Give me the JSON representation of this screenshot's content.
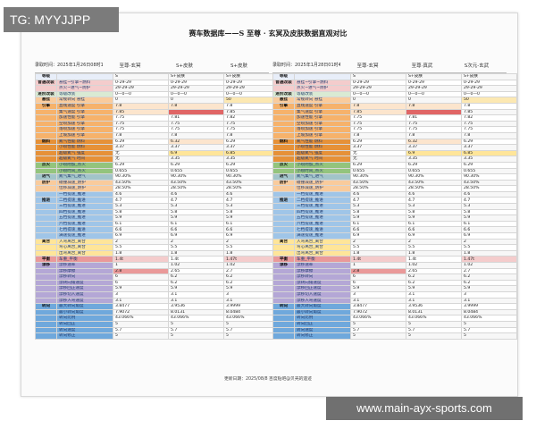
{
  "overlay": {
    "tag": "TG: MYYJJPP",
    "url": "www.main-ayx-sports.com"
  },
  "doc": {
    "title": "赛车数据库——S 至尊 · 玄冥及皮肤数据直观对比",
    "footer": "更新日期：2025/08/8 百度贴吧@贝壳的遗迹",
    "left": {
      "date": "录取时间：2025年1月26日08时15分",
      "cols": [
        "至尊-玄冥",
        "S+皮肤",
        "S+皮肤"
      ]
    },
    "right": {
      "date": "录取时间：2025年1月28日01时45分",
      "cols": [
        "至尊-玄冥",
        "至尊·真武",
        "S次元-玄武"
      ]
    }
  },
  "colors": {
    "item": "#1f3a6e",
    "red": "#e06666"
  },
  "rows": [
    {
      "cat": "等级",
      "item": "",
      "v": [
        "S",
        "S+皮肤",
        "S+皮肤"
      ],
      "bg": "#e8eef9",
      "c": [
        "",
        "",
        ""
      ]
    },
    {
      "cat": "普通改装",
      "item": "悬挂~引擎~燃料",
      "v": [
        "0-29-29",
        "0-29-29",
        "0-29-29"
      ],
      "bg": "#f4cccc",
      "c": [
        "",
        "",
        ""
      ]
    },
    {
      "cat": "",
      "item": "点火~进气~防护",
      "v": [
        "29-29-29",
        "29-29-29",
        "29-29-29"
      ],
      "bg": "#f4cccc",
      "c": [
        "",
        "",
        ""
      ]
    },
    {
      "cat": "进阶改装",
      "item": "等级改装",
      "v": [
        "0—0—0",
        "0—0—0",
        "0—0—0"
      ],
      "bg": "#d9ead3",
      "c": [
        "",
        "",
        ""
      ]
    },
    {
      "cat": "悬挂",
      "item": "常规转向 悬挂",
      "v": [
        "0",
        "0",
        "50"
      ],
      "bg": "#f9cb9c",
      "c": [
        "",
        "",
        "#fce8b2"
      ]
    },
    {
      "cat": "引擎",
      "item": "直线速度 引擎",
      "v": [
        "7.8",
        "7.8",
        "7.8"
      ],
      "bg": "#f6b26b",
      "c": [
        "#fce5cd",
        "#fce5cd",
        ""
      ]
    },
    {
      "cat": "",
      "item": "集气速度 引擎",
      "v": [
        "7.85",
        "",
        "7.85"
      ],
      "bg": "#f6b26b",
      "c": [
        "#fce5cd",
        "#e06666",
        ""
      ]
    },
    {
      "cat": "",
      "item": "加速性能 引擎",
      "v": [
        "7.75",
        "7.81",
        "7.82"
      ],
      "bg": "#f6b26b",
      "c": [
        "",
        "",
        ""
      ]
    },
    {
      "cat": "",
      "item": "空喷加速 引擎",
      "v": [
        "7.75",
        "7.75",
        "7.75"
      ],
      "bg": "#f6b26b",
      "c": [
        "",
        "",
        ""
      ]
    },
    {
      "cat": "",
      "item": "落喷加速 引擎",
      "v": [
        "7.75",
        "7.75",
        "7.75"
      ],
      "bg": "#f6b26b",
      "c": [
        "",
        "",
        ""
      ]
    },
    {
      "cat": "",
      "item": "上坡加速 引擎",
      "v": [
        "7.8",
        "7.8",
        "7.8"
      ],
      "bg": "#f6b26b",
      "c": [
        "",
        "",
        ""
      ]
    },
    {
      "cat": "燃料",
      "item": "氮气性能 燃料",
      "v": [
        "6.29",
        "6.32",
        "6.29"
      ],
      "bg": "#e69138",
      "c": [
        "",
        "#fce5cd",
        ""
      ]
    },
    {
      "cat": "",
      "item": "小喷性能 燃料",
      "v": [
        "3.37",
        "3.37",
        "3.37"
      ],
      "bg": "#e69138",
      "c": [
        "",
        "",
        ""
      ]
    },
    {
      "cat": "",
      "item": "超级氮气 强度",
      "v": [
        "无",
        "6.9",
        "6.85"
      ],
      "bg": "#e69138",
      "c": [
        "",
        "#ffe599",
        "#ffe599"
      ]
    },
    {
      "cat": "",
      "item": "超级氮气 时间",
      "v": [
        "无",
        "3.35",
        "3.35"
      ],
      "bg": "#e69138",
      "c": [
        "",
        "",
        ""
      ]
    },
    {
      "cat": "点火",
      "item": "小喷附加_点火",
      "v": [
        "6.29",
        "6.29",
        "6.29"
      ],
      "bg": "#93c47d",
      "c": [
        "",
        "",
        ""
      ]
    },
    {
      "cat": "",
      "item": "小喷时间_点火",
      "v": [
        "0.655",
        "0.655",
        "0.655"
      ],
      "bg": "#93c47d",
      "c": [
        "",
        "",
        ""
      ]
    },
    {
      "cat": "进气",
      "item": "氮气集气_进气",
      "v": [
        "90.30%",
        "90.30%",
        "90.30%"
      ],
      "bg": "#a2c4c9",
      "c": [
        "",
        "",
        ""
      ]
    },
    {
      "cat": "防护",
      "item": "碰撞减速_防护",
      "v": [
        "43.50%",
        "43.50%",
        "43.50%"
      ],
      "bg": "#f9cb9c",
      "c": [
        "",
        "",
        ""
      ]
    },
    {
      "cat": "",
      "item": "位移减速_防护",
      "v": [
        "28.50%",
        "28.50%",
        "28.50%"
      ],
      "bg": "#f9cb9c",
      "c": [
        "",
        "",
        ""
      ]
    },
    {
      "cat": "",
      "item": "一档提速_推进",
      "v": [
        "4.6",
        "4.6",
        "4.6"
      ],
      "bg": "#9fc5e8",
      "c": [
        "",
        "",
        ""
      ]
    },
    {
      "cat": "推进",
      "item": "二档提速_推进",
      "v": [
        "4.7",
        "4.7",
        "4.7"
      ],
      "bg": "#9fc5e8",
      "c": [
        "",
        "",
        ""
      ]
    },
    {
      "cat": "",
      "item": "三档提速_推进",
      "v": [
        "5.3",
        "5.3",
        "5.3"
      ],
      "bg": "#9fc5e8",
      "c": [
        "",
        "",
        ""
      ]
    },
    {
      "cat": "",
      "item": "四档提速_推进",
      "v": [
        "5.8",
        "5.8",
        "5.8"
      ],
      "bg": "#9fc5e8",
      "c": [
        "",
        "",
        ""
      ]
    },
    {
      "cat": "",
      "item": "五档提速_推进",
      "v": [
        "5.9",
        "5.9",
        "5.9"
      ],
      "bg": "#9fc5e8",
      "c": [
        "",
        "",
        ""
      ]
    },
    {
      "cat": "",
      "item": "六档提速_推进",
      "v": [
        "6.1",
        "6.1",
        "6.1"
      ],
      "bg": "#9fc5e8",
      "c": [
        "",
        "",
        ""
      ]
    },
    {
      "cat": "",
      "item": "七档提速_推进",
      "v": [
        "6.6",
        "6.6",
        "6.6"
      ],
      "bg": "#9fc5e8",
      "c": [
        "",
        "",
        ""
      ]
    },
    {
      "cat": "",
      "item": "满速提速_推进",
      "v": [
        "6.9",
        "6.9",
        "6.9"
      ],
      "bg": "#9fc5e8",
      "c": [
        "",
        "",
        ""
      ]
    },
    {
      "cat": "离合",
      "item": "入弯离合_离合",
      "v": [
        "2",
        "2",
        "2"
      ],
      "bg": "#ffe599",
      "c": [
        "",
        "",
        ""
      ]
    },
    {
      "cat": "",
      "item": "弯心离合_离合",
      "v": [
        "5.5",
        "5.5",
        "5.5"
      ],
      "bg": "#ffe599",
      "c": [
        "",
        "",
        ""
      ]
    },
    {
      "cat": "",
      "item": "出弯离合_离合",
      "v": [
        "1.8",
        "1.8",
        "1.8"
      ],
      "bg": "#ffe599",
      "c": [
        "",
        "",
        ""
      ]
    },
    {
      "cat": "平衡",
      "item": "车重_平衡",
      "v": [
        "1.4t",
        "1.4t",
        "1.47t"
      ],
      "bg": "#ea9999",
      "c": [
        "#f4cccc",
        "",
        "#f4cccc"
      ]
    },
    {
      "cat": "漂移",
      "item": "漂移速率",
      "v": [
        "1",
        "1.02",
        "1.02"
      ],
      "bg": "#b4a7d6",
      "c": [
        "",
        "",
        ""
      ]
    },
    {
      "cat": "",
      "item": "漂移摩擦",
      "v": [
        "2.8",
        "2.65",
        "2.7"
      ],
      "bg": "#b4a7d6",
      "c": [
        "#ea9999",
        "",
        ""
      ]
    },
    {
      "cat": "",
      "item": "漂移转向",
      "v": [
        "6",
        "6.2",
        "6.2"
      ],
      "bg": "#b4a7d6",
      "c": [
        "",
        "",
        ""
      ]
    },
    {
      "cat": "",
      "item": "漂转向角速度",
      "v": [
        "6",
        "6.2",
        "6.2"
      ],
      "bg": "#b4a7d6",
      "c": [
        "",
        "",
        ""
      ]
    },
    {
      "cat": "",
      "item": "漂移回正速度",
      "v": [
        "5.9",
        "5.9",
        "5.9"
      ],
      "bg": "#b4a7d6",
      "c": [
        "",
        "",
        ""
      ]
    },
    {
      "cat": "",
      "item": "漂移切入速度",
      "v": [
        "3",
        "3.1",
        "3"
      ],
      "bg": "#b4a7d6",
      "c": [
        "",
        "",
        ""
      ]
    },
    {
      "cat": "",
      "item": "漂移入弯速度",
      "v": [
        "3.1",
        "3.1",
        "3.1"
      ],
      "bg": "#b4a7d6",
      "c": [
        "",
        "",
        ""
      ]
    },
    {
      "cat": "转向",
      "item": "最大转向角度",
      "v": [
        "3.8477",
        "3.9536",
        "3.9999"
      ],
      "bg": "#6fa8dc",
      "c": [
        "",
        "",
        ""
      ]
    },
    {
      "cat": "",
      "item": "最小转向角度",
      "v": [
        "7.9072",
        "8.0131",
        "8.0484"
      ],
      "bg": "#6fa8dc",
      "c": [
        "",
        "",
        ""
      ]
    },
    {
      "cat": "",
      "item": "转向比例",
      "v": [
        "43.066%",
        "43.066%",
        "43.066%"
      ],
      "bg": "#6fa8dc",
      "c": [
        "",
        "",
        ""
      ]
    },
    {
      "cat": "",
      "item": "转向回正",
      "v": [
        "5",
        "5",
        "5"
      ],
      "bg": "#6fa8dc",
      "c": [
        "",
        "",
        ""
      ]
    },
    {
      "cat": "",
      "item": "转向速度",
      "v": [
        "5.7",
        "5.7",
        "5.7"
      ],
      "bg": "#6fa8dc",
      "c": [
        "",
        "",
        ""
      ]
    },
    {
      "cat": "",
      "item": "转向修正",
      "v": [
        "5",
        "5",
        "5"
      ],
      "bg": "#6fa8dc",
      "c": [
        "",
        "",
        ""
      ]
    }
  ]
}
